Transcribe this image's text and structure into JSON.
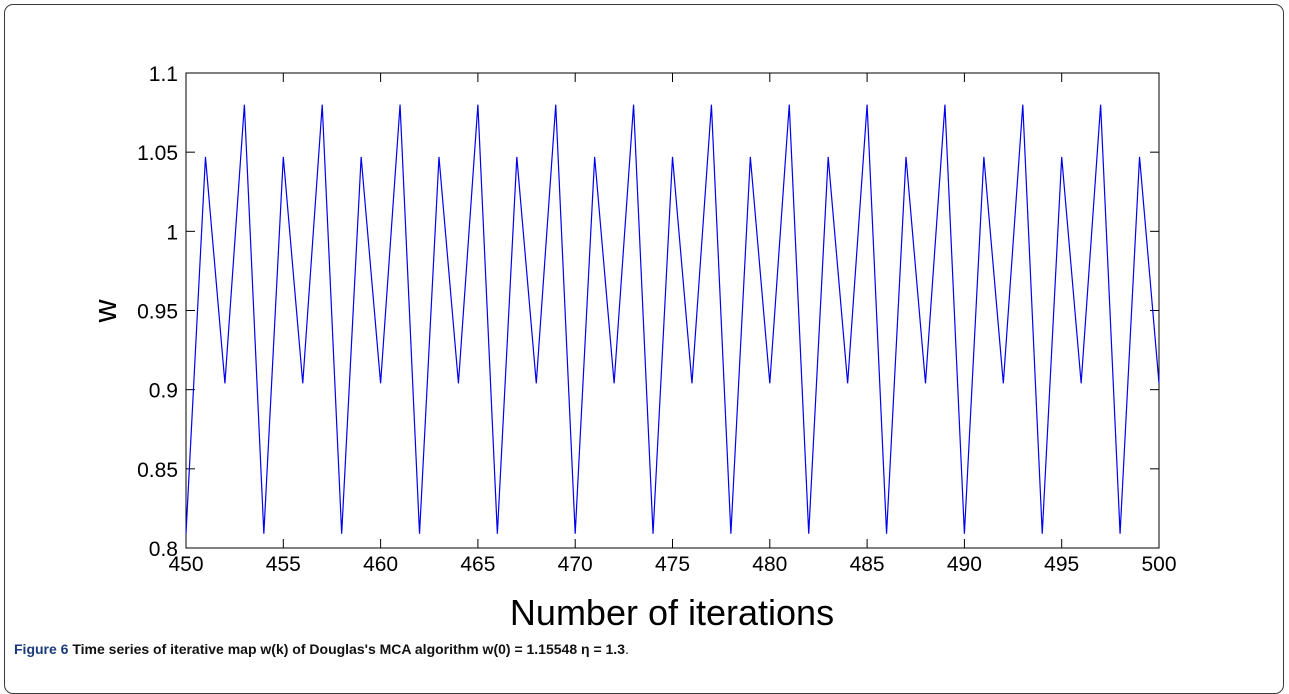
{
  "chart_data": {
    "type": "line",
    "xlabel": "Number of iterations",
    "ylabel": "w",
    "xlim": [
      450,
      500
    ],
    "ylim": [
      0.8,
      1.1
    ],
    "xticks": [
      "450",
      "455",
      "460",
      "465",
      "470",
      "475",
      "480",
      "485",
      "490",
      "495",
      "500"
    ],
    "yticks": [
      "0.8",
      "0.85",
      "0.9",
      "0.95",
      "1",
      "1.05",
      "1.1"
    ],
    "grid": false,
    "series": [
      {
        "color": "#0000ee",
        "x": [
          450,
          451,
          452,
          453,
          454,
          455,
          456,
          457,
          458,
          459,
          460,
          461,
          462,
          463,
          464,
          465,
          466,
          467,
          468,
          469,
          470,
          471,
          472,
          473,
          474,
          475,
          476,
          477,
          478,
          479,
          480,
          481,
          482,
          483,
          484,
          485,
          486,
          487,
          488,
          489,
          490,
          491,
          492,
          493,
          494,
          495,
          496,
          497,
          498,
          499,
          500
        ],
        "values": [
          0.809,
          1.047,
          0.904,
          1.08,
          0.809,
          1.047,
          0.904,
          1.08,
          0.809,
          1.047,
          0.904,
          1.08,
          0.809,
          1.047,
          0.904,
          1.08,
          0.809,
          1.047,
          0.904,
          1.08,
          0.809,
          1.047,
          0.904,
          1.08,
          0.809,
          1.047,
          0.904,
          1.08,
          0.809,
          1.047,
          0.904,
          1.08,
          0.809,
          1.047,
          0.904,
          1.08,
          0.809,
          1.047,
          0.904,
          1.08,
          0.809,
          1.047,
          0.904,
          1.08,
          0.809,
          1.047,
          0.904,
          1.08,
          0.809,
          1.047,
          0.904
        ]
      }
    ]
  },
  "caption": {
    "label": "Figure 6",
    "text": " Time series of iterative map w(k) of Douglas's MCA algorithm w(0) = 1.15548 η = 1.3",
    "end": "."
  }
}
